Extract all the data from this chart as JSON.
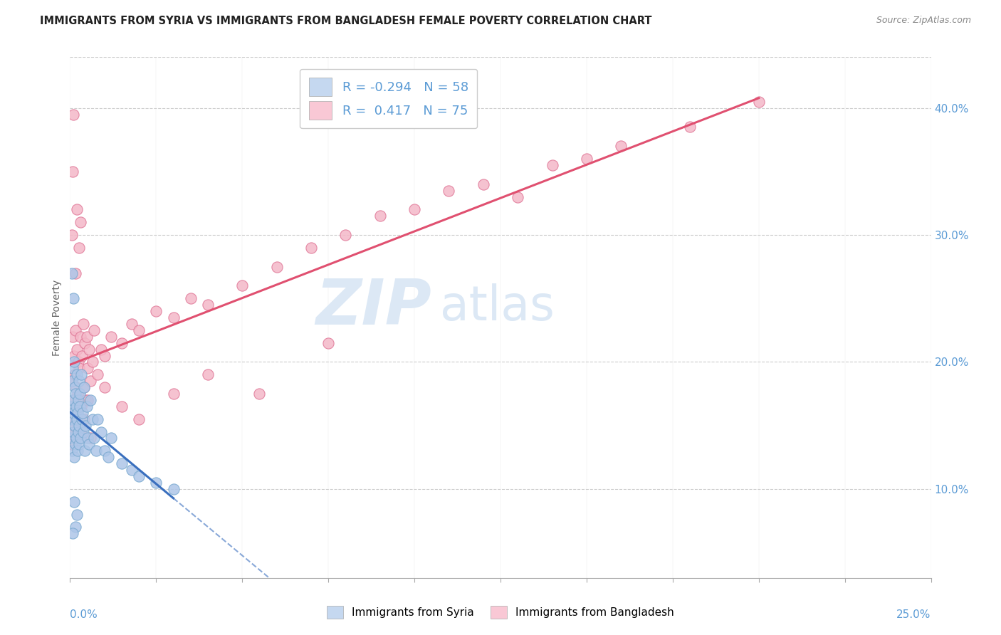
{
  "title": "IMMIGRANTS FROM SYRIA VS IMMIGRANTS FROM BANGLADESH FEMALE POVERTY CORRELATION CHART",
  "source": "Source: ZipAtlas.com",
  "ylabel": "Female Poverty",
  "x_range": [
    0.0,
    25.0
  ],
  "y_range": [
    3.0,
    44.0
  ],
  "y_ticks": [
    10.0,
    20.0,
    30.0,
    40.0
  ],
  "legend_syria_r": "-0.294",
  "legend_syria_n": "58",
  "legend_bangladesh_r": "0.417",
  "legend_bangladesh_n": "75",
  "syria_line_color": "#3a6fbe",
  "syria_line_solid_color": "#2255aa",
  "bangladesh_line_color": "#e05070",
  "syria_scatter_color": "#aec6e8",
  "syria_scatter_edge": "#7aaad0",
  "bangladesh_scatter_color": "#f4b8c8",
  "bangladesh_scatter_edge": "#e07898",
  "grid_color": "#cccccc",
  "background_color": "#ffffff",
  "title_color": "#222222",
  "axis_label_color": "#5b9bd5",
  "watermark_color": "#dce8f5",
  "scatter_syria": [
    [
      0.02,
      16.5
    ],
    [
      0.03,
      14.0
    ],
    [
      0.04,
      15.5
    ],
    [
      0.05,
      18.5
    ],
    [
      0.06,
      13.0
    ],
    [
      0.07,
      17.0
    ],
    [
      0.08,
      19.5
    ],
    [
      0.09,
      14.5
    ],
    [
      0.1,
      16.0
    ],
    [
      0.11,
      12.5
    ],
    [
      0.12,
      20.0
    ],
    [
      0.13,
      15.0
    ],
    [
      0.14,
      18.0
    ],
    [
      0.15,
      13.5
    ],
    [
      0.16,
      17.5
    ],
    [
      0.17,
      16.5
    ],
    [
      0.18,
      14.0
    ],
    [
      0.19,
      15.5
    ],
    [
      0.2,
      19.0
    ],
    [
      0.21,
      13.0
    ],
    [
      0.22,
      16.0
    ],
    [
      0.23,
      17.0
    ],
    [
      0.24,
      14.5
    ],
    [
      0.25,
      18.5
    ],
    [
      0.26,
      15.0
    ],
    [
      0.27,
      13.5
    ],
    [
      0.28,
      16.5
    ],
    [
      0.29,
      17.5
    ],
    [
      0.3,
      14.0
    ],
    [
      0.32,
      19.0
    ],
    [
      0.34,
      15.5
    ],
    [
      0.36,
      16.0
    ],
    [
      0.38,
      14.5
    ],
    [
      0.4,
      18.0
    ],
    [
      0.42,
      13.0
    ],
    [
      0.45,
      15.0
    ],
    [
      0.48,
      16.5
    ],
    [
      0.5,
      14.0
    ],
    [
      0.55,
      13.5
    ],
    [
      0.6,
      17.0
    ],
    [
      0.65,
      15.5
    ],
    [
      0.7,
      14.0
    ],
    [
      0.75,
      13.0
    ],
    [
      0.8,
      15.5
    ],
    [
      0.9,
      14.5
    ],
    [
      1.0,
      13.0
    ],
    [
      1.1,
      12.5
    ],
    [
      1.2,
      14.0
    ],
    [
      1.5,
      12.0
    ],
    [
      1.8,
      11.5
    ],
    [
      2.0,
      11.0
    ],
    [
      2.5,
      10.5
    ],
    [
      3.0,
      10.0
    ],
    [
      0.05,
      27.0
    ],
    [
      0.1,
      25.0
    ],
    [
      0.15,
      7.0
    ],
    [
      0.2,
      8.0
    ],
    [
      0.12,
      9.0
    ],
    [
      0.08,
      6.5
    ]
  ],
  "scatter_bangladesh": [
    [
      0.03,
      16.0
    ],
    [
      0.05,
      18.5
    ],
    [
      0.07,
      14.5
    ],
    [
      0.08,
      22.0
    ],
    [
      0.1,
      17.0
    ],
    [
      0.11,
      20.5
    ],
    [
      0.12,
      15.5
    ],
    [
      0.14,
      19.0
    ],
    [
      0.15,
      22.5
    ],
    [
      0.16,
      14.0
    ],
    [
      0.18,
      18.0
    ],
    [
      0.2,
      21.0
    ],
    [
      0.22,
      17.5
    ],
    [
      0.24,
      20.0
    ],
    [
      0.25,
      15.0
    ],
    [
      0.27,
      19.5
    ],
    [
      0.3,
      22.0
    ],
    [
      0.32,
      16.5
    ],
    [
      0.35,
      20.5
    ],
    [
      0.38,
      23.0
    ],
    [
      0.4,
      18.0
    ],
    [
      0.42,
      21.5
    ],
    [
      0.45,
      17.0
    ],
    [
      0.48,
      22.0
    ],
    [
      0.5,
      19.5
    ],
    [
      0.55,
      21.0
    ],
    [
      0.6,
      18.5
    ],
    [
      0.65,
      20.0
    ],
    [
      0.7,
      22.5
    ],
    [
      0.8,
      19.0
    ],
    [
      0.9,
      21.0
    ],
    [
      1.0,
      20.5
    ],
    [
      1.2,
      22.0
    ],
    [
      1.5,
      21.5
    ],
    [
      1.8,
      23.0
    ],
    [
      2.0,
      22.5
    ],
    [
      2.5,
      24.0
    ],
    [
      3.0,
      23.5
    ],
    [
      3.5,
      25.0
    ],
    [
      4.0,
      24.5
    ],
    [
      5.0,
      26.0
    ],
    [
      6.0,
      27.5
    ],
    [
      7.0,
      29.0
    ],
    [
      8.0,
      30.0
    ],
    [
      9.0,
      31.5
    ],
    [
      10.0,
      32.0
    ],
    [
      11.0,
      33.5
    ],
    [
      12.0,
      34.0
    ],
    [
      14.0,
      35.5
    ],
    [
      15.0,
      36.0
    ],
    [
      16.0,
      37.0
    ],
    [
      18.0,
      38.5
    ],
    [
      20.0,
      40.5
    ],
    [
      0.06,
      30.0
    ],
    [
      0.08,
      35.0
    ],
    [
      0.1,
      39.5
    ],
    [
      0.2,
      32.0
    ],
    [
      0.3,
      31.0
    ],
    [
      0.15,
      27.0
    ],
    [
      0.25,
      29.0
    ],
    [
      0.05,
      13.5
    ],
    [
      0.1,
      15.0
    ],
    [
      0.2,
      16.0
    ],
    [
      0.3,
      14.5
    ],
    [
      0.4,
      15.5
    ],
    [
      0.5,
      17.0
    ],
    [
      1.0,
      18.0
    ],
    [
      1.5,
      16.5
    ],
    [
      2.0,
      15.5
    ],
    [
      0.6,
      14.0
    ],
    [
      3.0,
      17.5
    ],
    [
      4.0,
      19.0
    ],
    [
      5.5,
      17.5
    ],
    [
      7.5,
      21.5
    ],
    [
      13.0,
      33.0
    ]
  ]
}
